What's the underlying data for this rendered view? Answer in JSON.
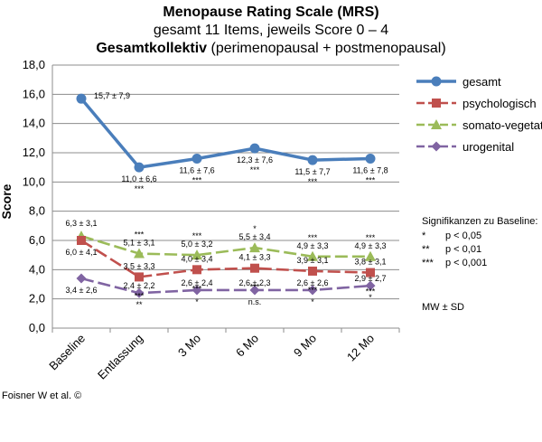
{
  "chart_data": {
    "type": "line",
    "title": "Menopause Rating Scale (MRS)",
    "subtitle": "gesamt 11 Items, jeweils Score 0 – 4",
    "subtitle2_bold": "Gesamtkollektiv",
    "subtitle2_rest": " (perimenopausal + postmenopausal)",
    "xlabel": "",
    "ylabel": "Score",
    "ylim": [
      0,
      18
    ],
    "ytick_step": 2,
    "yticks": [
      "0,0",
      "2,0",
      "4,0",
      "6,0",
      "8,0",
      "10,0",
      "12,0",
      "14,0",
      "16,0",
      "18,0"
    ],
    "categories": [
      "Baseline",
      "Entlassung",
      "3 Mo",
      "6 Mo",
      "9 Mo",
      "12 Mo"
    ],
    "grid": true,
    "legend_position": "right",
    "series": [
      {
        "name": "gesamt",
        "color": "#4a7ebb",
        "marker": "circle",
        "dash": "solid",
        "values": [
          15.7,
          11.0,
          11.6,
          12.3,
          11.5,
          11.6
        ],
        "labels": [
          "15,7 ± 7,9",
          "11,0 ± 6,6",
          "11,6 ± 7,6",
          "12,3 ± 7,6",
          "11,5 ± 7,7",
          "11,6 ± 7,8"
        ],
        "sig": [
          "",
          "***",
          "***",
          "***",
          "***",
          "***"
        ]
      },
      {
        "name": "psychologisch",
        "color": "#c0504d",
        "marker": "square",
        "dash": "long-dash",
        "values": [
          6.0,
          3.5,
          4.0,
          4.1,
          3.9,
          3.8
        ],
        "labels": [
          "6,0 ± 4,1",
          "3,5 ± 3,3",
          "4,0 ± 3,4",
          "4,1 ± 3,3",
          "3,9 ± 3,1",
          "3,8 ± 3,1"
        ],
        "sig": [
          "",
          "***",
          "***",
          "***",
          "***",
          "***"
        ]
      },
      {
        "name": "somato-vegetativ",
        "color": "#9bbb59",
        "marker": "triangle",
        "dash": "long-dash",
        "values": [
          6.3,
          5.1,
          5.0,
          5.5,
          4.9,
          4.9
        ],
        "labels": [
          "6,3 ± 3,1",
          "5,1 ± 3,1",
          "5,0 ± 3,2",
          "5,5 ± 3,4",
          "4,9 ± 3,3",
          "4,9 ± 3,3"
        ],
        "sig": [
          "",
          "***",
          "***",
          "*",
          "***",
          "***"
        ]
      },
      {
        "name": "urogenital",
        "color": "#8064a2",
        "marker": "diamond",
        "dash": "long-dash",
        "values": [
          3.4,
          2.4,
          2.6,
          2.6,
          2.6,
          2.9
        ],
        "labels": [
          "3,4 ± 2,6",
          "2,4 ± 2,2",
          "2,6 ± 2,4",
          "2,6 ± 2,3",
          "2,6 ± 2,6",
          "2,9 ± 2,7"
        ],
        "sig": [
          "",
          "**",
          "*",
          "n.s.",
          "*",
          "*"
        ]
      }
    ],
    "significance": {
      "heading": "Signifikanzen zu Baseline:",
      "rows": [
        {
          "sym": "*",
          "text": "p < 0,05"
        },
        {
          "sym": "**",
          "text": "p < 0,01"
        },
        {
          "sym": "***",
          "text": "p < 0,001"
        }
      ],
      "note": "MW ± SD"
    },
    "footer": "Foisner W et al. ©"
  }
}
